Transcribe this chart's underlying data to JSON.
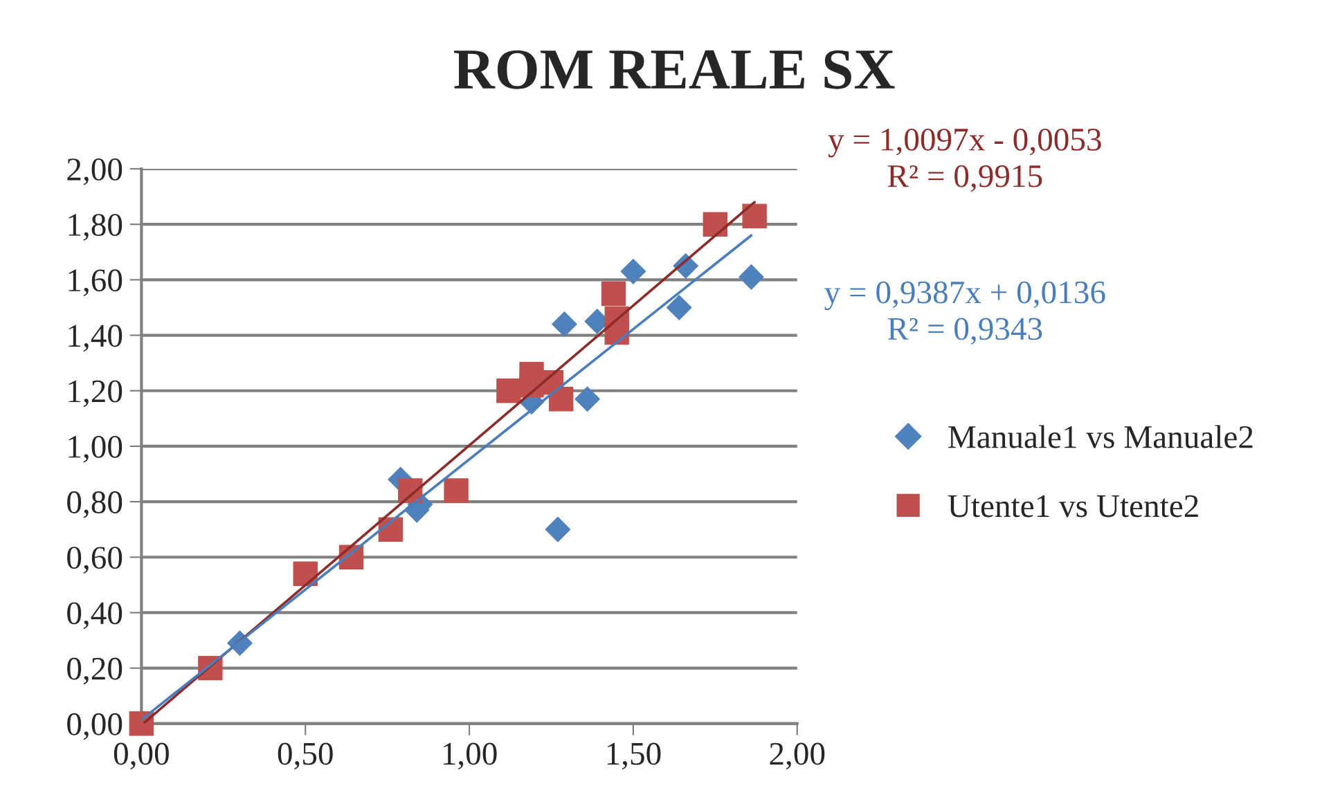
{
  "chart_data": {
    "type": "scatter",
    "title": "ROM REALE SX",
    "xlim": [
      0,
      2
    ],
    "ylim": [
      0,
      2
    ],
    "xticks": [
      {
        "value": 0,
        "label": "0,00"
      },
      {
        "value": 0.5,
        "label": "0,50"
      },
      {
        "value": 1,
        "label": "1,00"
      },
      {
        "value": 1.5,
        "label": "1,50"
      },
      {
        "value": 2,
        "label": "2,00"
      }
    ],
    "yticks": [
      {
        "value": 0,
        "label": "0,00"
      },
      {
        "value": 0.2,
        "label": "0,20"
      },
      {
        "value": 0.4,
        "label": "0,40"
      },
      {
        "value": 0.6,
        "label": "0,60"
      },
      {
        "value": 0.8,
        "label": "0,80"
      },
      {
        "value": 1,
        "label": "1,00"
      },
      {
        "value": 1.2,
        "label": "1,20"
      },
      {
        "value": 1.4,
        "label": "1,40"
      },
      {
        "value": 1.6,
        "label": "1,60"
      },
      {
        "value": 1.8,
        "label": "1,80"
      },
      {
        "value": 2,
        "label": "2,00"
      }
    ],
    "grid": "y",
    "legend": "right",
    "series": [
      {
        "name": "Manuale1 vs Manuale2",
        "color": "#4f81bd",
        "marker": "diamond",
        "x": [
          0.3,
          0.79,
          0.85,
          0.84,
          1.19,
          1.27,
          1.29,
          1.36,
          1.39,
          1.5,
          1.64,
          1.66,
          1.86
        ],
        "values": [
          0.29,
          0.88,
          0.79,
          0.77,
          1.16,
          0.7,
          1.44,
          1.17,
          1.45,
          1.63,
          1.5,
          1.65,
          1.61
        ]
      },
      {
        "name": "Utente1 vs Utente2",
        "color": "#c0504d",
        "marker": "square",
        "x": [
          0,
          0.21,
          0.5,
          0.64,
          0.76,
          0.82,
          0.96,
          1.12,
          1.19,
          1.19,
          1.25,
          1.28,
          1.44,
          1.45,
          1.45,
          1.75,
          1.87
        ],
        "values": [
          0,
          0.2,
          0.54,
          0.6,
          0.7,
          0.84,
          0.84,
          1.2,
          1.26,
          1.22,
          1.23,
          1.17,
          1.55,
          1.46,
          1.41,
          1.8,
          1.83
        ]
      },
      {
        "type": "line",
        "color": "#8b2c2a",
        "marker": "none",
        "x": [
          0.01,
          1.87
        ],
        "values": [
          0.005,
          1.88
        ]
      },
      {
        "type": "line",
        "color": "#4a7ebb",
        "marker": "none",
        "x": [
          0,
          1.86
        ],
        "values": [
          0.014,
          1.76
        ]
      }
    ],
    "annotations": [
      "y = 1,0097x - 0,0053\nR² = 0,9915",
      "y = 0,9387x + 0,0136\nR² = 0,9343"
    ]
  }
}
